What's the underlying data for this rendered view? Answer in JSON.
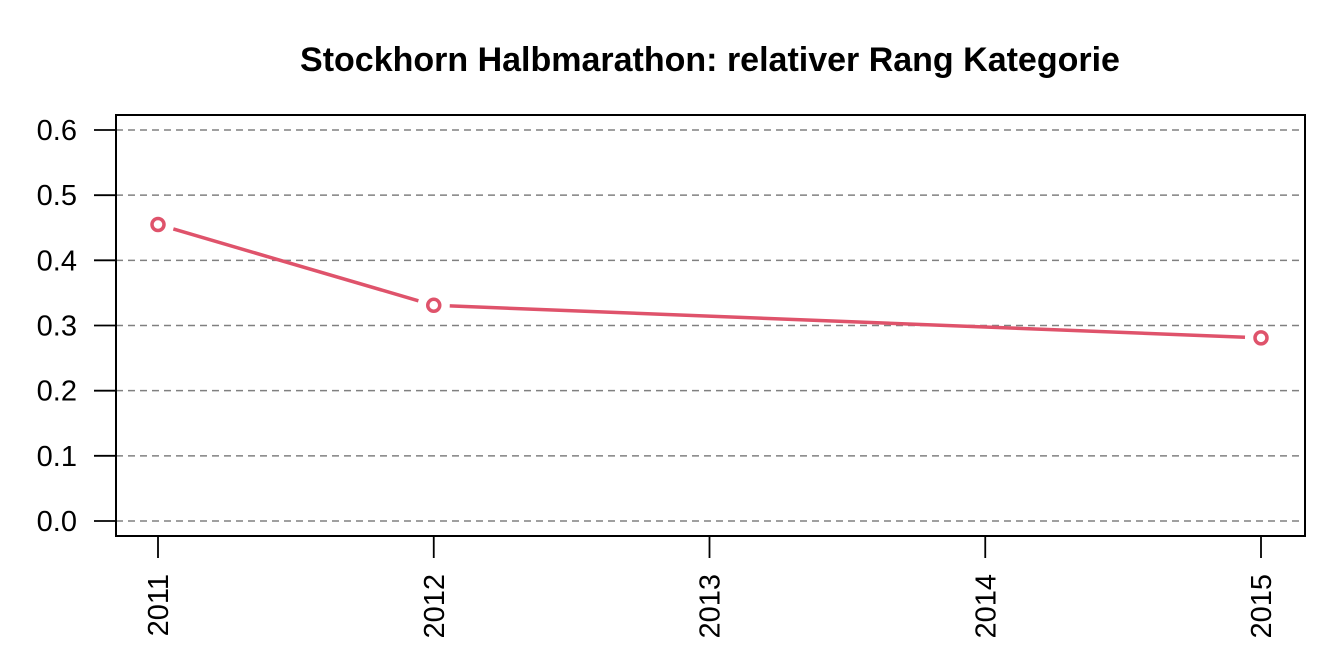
{
  "chart_data": {
    "type": "line",
    "title": "Stockhorn Halbmarathon: relativer Rang Kategorie",
    "xlabel": "",
    "ylabel": "",
    "x": [
      "2011",
      "2012",
      "2013",
      "2014",
      "2015"
    ],
    "series": [
      {
        "x": [
          2011,
          2012,
          2015
        ],
        "values": [
          0.455,
          0.331,
          0.281
        ],
        "color": "#DF536B"
      }
    ],
    "ylim": [
      0,
      0.6
    ],
    "yticks": [
      "0.0",
      "0.1",
      "0.2",
      "0.3",
      "0.4",
      "0.5",
      "0.6"
    ],
    "xlim": [
      2011,
      2015
    ],
    "grid": "horizontal dashed",
    "legend": "none",
    "x_tick_orientation": "vertical"
  }
}
